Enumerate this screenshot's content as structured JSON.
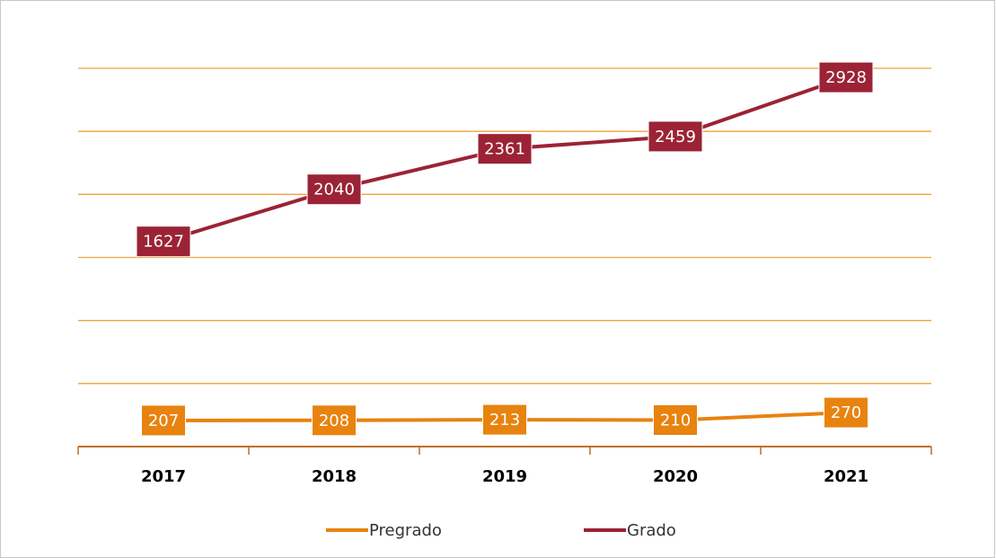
{
  "chart_data": {
    "type": "line",
    "categories": [
      "2017",
      "2018",
      "2019",
      "2020",
      "2021"
    ],
    "series": [
      {
        "name": "Pregrado",
        "color": "#e8830f",
        "values": [
          207,
          208,
          213,
          210,
          270
        ]
      },
      {
        "name": "Grado",
        "color": "#9b2335",
        "values": [
          1627,
          2040,
          2361,
          2459,
          2928
        ]
      }
    ],
    "ylim": [
      0,
      3000
    ],
    "yticks": [
      0,
      500,
      1000,
      1500,
      2000,
      2500,
      3000
    ],
    "grid": true
  }
}
